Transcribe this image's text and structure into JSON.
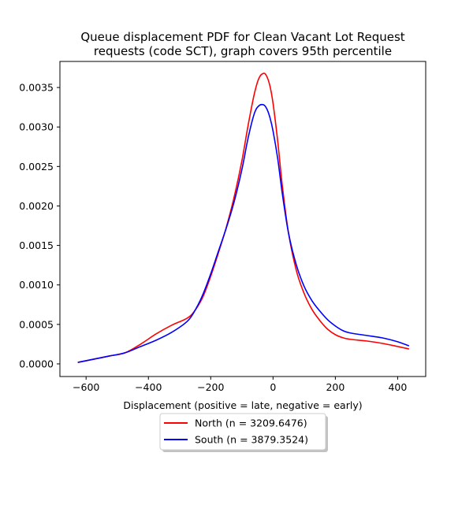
{
  "chart_data": {
    "type": "line",
    "title_lines": [
      "Queue displacement PDF for Clean Vacant Lot Request",
      "requests (code SCT), graph covers 95th percentile"
    ],
    "xlabel": "Displacement (positive = late, negative = early)",
    "ylabel": "",
    "xlim": [
      -684,
      490
    ],
    "ylim": [
      -0.00016,
      0.00383
    ],
    "xticks": [
      -600,
      -400,
      -200,
      0,
      200,
      400
    ],
    "xtick_labels": [
      "−600",
      "−400",
      "−200",
      "0",
      "200",
      "400"
    ],
    "yticks": [
      0.0,
      0.0005,
      0.001,
      0.0015,
      0.002,
      0.0025,
      0.003,
      0.0035
    ],
    "ytick_labels": [
      "0.0000",
      "0.0005",
      "0.0010",
      "0.0015",
      "0.0020",
      "0.0025",
      "0.0030",
      "0.0035"
    ],
    "grid": false,
    "legend_position": "below",
    "series": [
      {
        "name": "North (n = 3209.6476)",
        "color": "#ff0000",
        "x": [
          -625,
          -575,
          -525,
          -475,
          -425,
          -375,
          -325,
          -275,
          -250,
          -225,
          -200,
          -175,
          -150,
          -125,
          -100,
          -80,
          -60,
          -45,
          -30,
          -20,
          -10,
          0,
          15,
          30,
          50,
          75,
          100,
          125,
          150,
          175,
          200,
          225,
          250,
          300,
          350,
          400,
          435
        ],
        "y": [
          2e-05,
          6e-05,
          0.0001,
          0.00014,
          0.00025,
          0.00038,
          0.00049,
          0.00058,
          0.00068,
          0.00085,
          0.00111,
          0.00141,
          0.00173,
          0.00211,
          0.00257,
          0.00302,
          0.00342,
          0.00362,
          0.00368,
          0.00364,
          0.00352,
          0.0033,
          0.00282,
          0.00225,
          0.00165,
          0.00118,
          0.00089,
          0.00069,
          0.00055,
          0.00044,
          0.00037,
          0.00033,
          0.00031,
          0.00029,
          0.00026,
          0.00022,
          0.00019
        ]
      },
      {
        "name": "South (n = 3879.3524)",
        "color": "#0000ff",
        "x": [
          -625,
          -575,
          -525,
          -475,
          -425,
          -375,
          -325,
          -275,
          -250,
          -225,
          -200,
          -175,
          -150,
          -125,
          -100,
          -80,
          -60,
          -45,
          -30,
          -20,
          -10,
          0,
          15,
          30,
          50,
          75,
          100,
          125,
          150,
          175,
          200,
          225,
          250,
          300,
          350,
          400,
          435
        ],
        "y": [
          2e-05,
          6e-05,
          0.0001,
          0.00014,
          0.00022,
          0.0003,
          0.0004,
          0.00054,
          0.00068,
          0.00088,
          0.00114,
          0.00143,
          0.00172,
          0.00205,
          0.00246,
          0.00286,
          0.00317,
          0.00327,
          0.00328,
          0.00323,
          0.00312,
          0.00295,
          0.0026,
          0.00215,
          0.00165,
          0.00125,
          0.00098,
          0.0008,
          0.00067,
          0.00056,
          0.00048,
          0.00042,
          0.00039,
          0.00036,
          0.00033,
          0.00028,
          0.00023
        ]
      }
    ]
  }
}
